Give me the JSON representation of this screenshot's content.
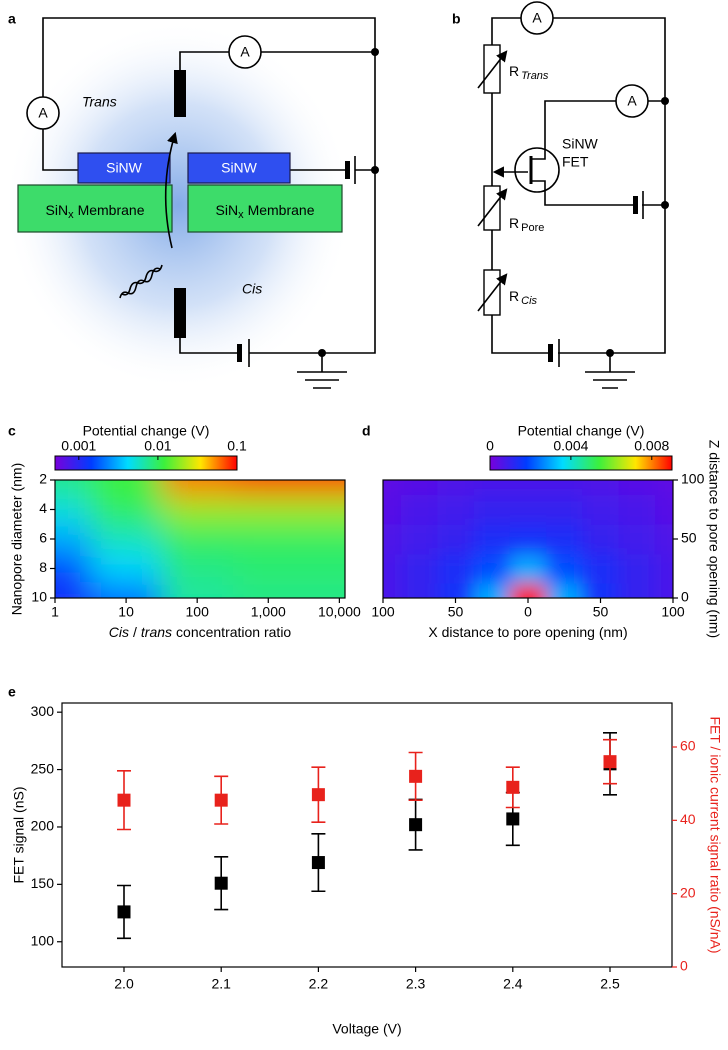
{
  "diagram_a": {
    "label": "a",
    "trans": "Trans",
    "cis": "Cis",
    "ammeters": [
      "A",
      "A"
    ],
    "nanowires": [
      "SiNW",
      "SiNW"
    ],
    "membranes": [
      {
        "text": "SiN",
        "sub": "x",
        "rest": "Membrane"
      },
      {
        "text": "SiN",
        "sub": "x",
        "rest": "Membrane"
      }
    ]
  },
  "diagram_b": {
    "label": "b",
    "ammeters": [
      "A",
      "A"
    ],
    "resistors": [
      {
        "text": "R",
        "sub": "Trans"
      },
      {
        "text": "R",
        "sub": "Pore"
      },
      {
        "text": "R",
        "sub": "Cis"
      }
    ],
    "fet": [
      "SiNW",
      "FET"
    ]
  },
  "chart_data": [
    {
      "type": "heatmap",
      "label": "c",
      "colormap": "rainbow",
      "xlabel": [
        "Cis",
        "/",
        "trans",
        "concentration ratio"
      ],
      "ylabel": "Nanopore diameter (nm)",
      "xscale": "log",
      "xlim": [
        1,
        12000
      ],
      "xticks": [
        1,
        10,
        100,
        {
          "value": 1000,
          "label": "1,000"
        },
        {
          "value": 10000,
          "label": "10,000"
        }
      ],
      "ylim": [
        2,
        10
      ],
      "y_inverted": true,
      "yticks": [
        2,
        4,
        6,
        8,
        10
      ],
      "x": [
        1,
        10,
        100,
        1000,
        10000
      ],
      "y": [
        2,
        4,
        6,
        8,
        10
      ],
      "values": [
        [
          0.008,
          0.012,
          0.06,
          0.08,
          0.08
        ],
        [
          0.005,
          0.01,
          0.02,
          0.02,
          0.02
        ],
        [
          0.003,
          0.006,
          0.01,
          0.01,
          0.01
        ],
        [
          0.0015,
          0.004,
          0.008,
          0.009,
          0.009
        ],
        [
          0.0012,
          0.002,
          0.007,
          0.008,
          0.008
        ]
      ],
      "colorbar": {
        "label": "Potential change (V)",
        "scale": "log",
        "lim": [
          0.0005,
          0.1
        ],
        "ticks": [
          0.001,
          0.01,
          0.1
        ]
      }
    },
    {
      "type": "heatmap",
      "label": "d",
      "colormap": "rainbow",
      "xlabel": [
        "X distance to pore opening (nm)"
      ],
      "ylabel": "Z distance to pore opening (nm)",
      "yaxis_side": "right",
      "xlim": [
        -100,
        100
      ],
      "xticks": [
        {
          "value": -100,
          "label": "100"
        },
        {
          "value": -50,
          "label": "50"
        },
        0,
        50,
        100
      ],
      "ylim": [
        0,
        100
      ],
      "yticks": [
        0,
        50,
        100
      ],
      "x": [
        -100,
        -75,
        -50,
        -25,
        0,
        25,
        50,
        75,
        100
      ],
      "y": [
        0,
        25,
        50,
        75,
        100
      ],
      "values": [
        [
          0.0007,
          0.001,
          0.0015,
          0.003,
          0.009,
          0.003,
          0.0015,
          0.001,
          0.0007
        ],
        [
          0.0007,
          0.001,
          0.0014,
          0.002,
          0.003,
          0.002,
          0.0014,
          0.001,
          0.0007
        ],
        [
          0.0006,
          0.0008,
          0.001,
          0.0014,
          0.0015,
          0.0014,
          0.001,
          0.0008,
          0.0006
        ],
        [
          0.0005,
          0.0007,
          0.0008,
          0.001,
          0.001,
          0.001,
          0.0008,
          0.0007,
          0.0005
        ],
        [
          0.0004,
          0.0005,
          0.0006,
          0.0007,
          0.0007,
          0.0007,
          0.0006,
          0.0005,
          0.0004
        ]
      ],
      "colorbar": {
        "label": "Potential change (V)",
        "scale": "linear",
        "lim": [
          0,
          0.009
        ],
        "ticks": [
          0,
          0.004,
          0.008
        ]
      }
    },
    {
      "type": "errorbar",
      "label": "e",
      "xlabel": "Voltage (V)",
      "ylabel": "FET signal (nS)",
      "y2label": "FET / ionic current signal ratio (nS/nA)",
      "categories": [
        "2.0",
        "2.1",
        "2.2",
        "2.3",
        "2.4",
        "2.5"
      ],
      "ylim": [
        78,
        308
      ],
      "yticks": [
        100,
        150,
        200,
        250,
        300
      ],
      "y2lim": [
        0,
        72
      ],
      "y2ticks": [
        0,
        20,
        40,
        60
      ],
      "series": [
        {
          "color": "#000000",
          "values": [
            126,
            151,
            169,
            202,
            207,
            255
          ],
          "errors": [
            23,
            23,
            25,
            22,
            23,
            27
          ]
        },
        {
          "color": "#e8221c",
          "axis": "y2",
          "values": [
            45.5,
            45.5,
            47,
            52,
            49,
            56
          ],
          "errors": [
            8,
            6.5,
            7.5,
            6.5,
            5.5,
            6
          ]
        }
      ]
    }
  ]
}
